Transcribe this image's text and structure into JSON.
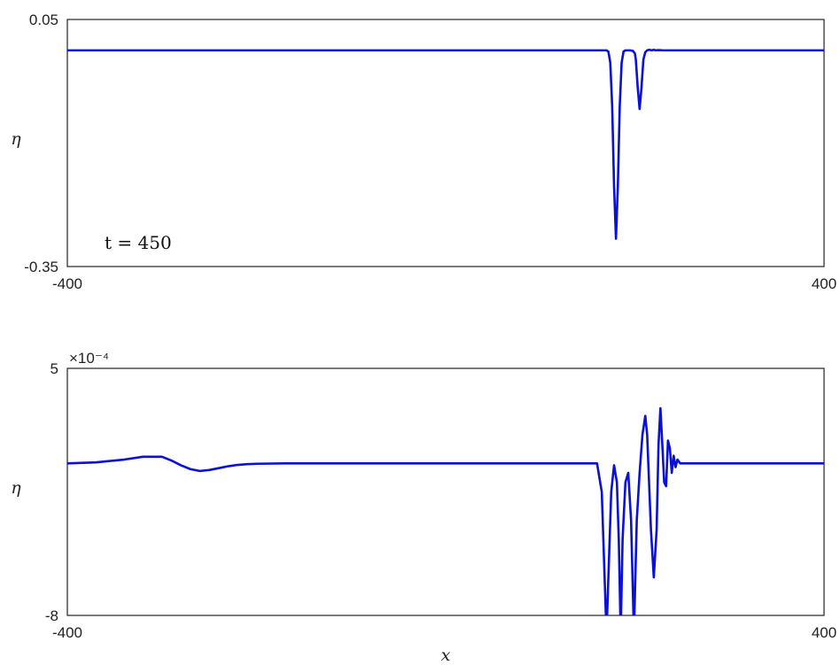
{
  "chart_data": [
    {
      "type": "line",
      "xlim": [
        -400,
        400
      ],
      "ylim": [
        -0.35,
        0.05
      ],
      "xticks": [
        "-400",
        "400"
      ],
      "yticks": [
        "0.05",
        "-0.35"
      ],
      "ylabel": "η",
      "annotation": "t = 450",
      "grid": false,
      "line_color": "#0a10d8",
      "series": [
        {
          "x": [
            -400,
            160,
            170,
            172,
            174,
            176,
            178,
            180,
            182,
            184,
            186,
            188,
            190,
            192,
            195,
            198,
            200,
            201,
            203,
            205,
            207,
            209,
            211,
            213,
            215,
            218,
            220,
            222,
            225,
            230,
            400
          ],
          "y": [
            0.0,
            0.0,
            0.0,
            -0.002,
            -0.02,
            -0.09,
            -0.22,
            -0.305,
            -0.22,
            -0.09,
            -0.02,
            -0.002,
            0.0,
            0.0,
            0.0,
            -0.001,
            -0.005,
            -0.015,
            -0.06,
            -0.095,
            -0.06,
            -0.015,
            -0.003,
            0.0,
            0.001,
            0.0,
            0.001,
            0.0,
            0.0005,
            0.0,
            0.0
          ]
        }
      ]
    },
    {
      "type": "line",
      "xlim": [
        -400,
        400
      ],
      "ylim": [
        -8,
        5
      ],
      "y_multiplier": "×10⁻⁴",
      "xticks": [
        "-400",
        "400"
      ],
      "yticks": [
        "5",
        "-8"
      ],
      "xlabel": "x",
      "ylabel": "η",
      "grid": false,
      "line_color": "#0a10d8",
      "series": [
        {
          "x": [
            -400,
            -370,
            -340,
            -320,
            -300,
            -290,
            -280,
            -270,
            -260,
            -250,
            -240,
            -230,
            -220,
            -210,
            -200,
            -170,
            -100,
            0,
            100,
            160,
            165,
            168,
            170,
            172,
            175,
            178,
            181,
            183,
            185,
            187,
            190,
            193,
            196,
            199,
            202,
            205,
            208,
            211,
            213,
            215,
            217,
            220,
            223,
            225,
            227,
            229,
            231,
            233,
            235,
            237,
            239,
            241,
            243,
            245,
            248,
            250,
            400
          ],
          "y": [
            0.0,
            0.05,
            0.2,
            0.35,
            0.35,
            0.15,
            -0.1,
            -0.3,
            -0.4,
            -0.35,
            -0.25,
            -0.15,
            -0.08,
            -0.04,
            -0.02,
            0.0,
            0.0,
            0.0,
            0.0,
            0.0,
            -1.5,
            -6.0,
            -9.0,
            -6.0,
            -1.5,
            -0.1,
            -1.0,
            -4.0,
            -9.0,
            -4.0,
            -1.0,
            -0.5,
            -3.0,
            -9.0,
            -3.0,
            -0.5,
            1.5,
            2.5,
            1.5,
            -1.0,
            -3.5,
            -6.0,
            -3.5,
            1.0,
            2.9,
            1.0,
            -1.0,
            -1.2,
            1.2,
            0.8,
            -0.5,
            0.4,
            -0.2,
            0.2,
            0.0,
            0.0,
            0.0
          ]
        }
      ]
    }
  ]
}
